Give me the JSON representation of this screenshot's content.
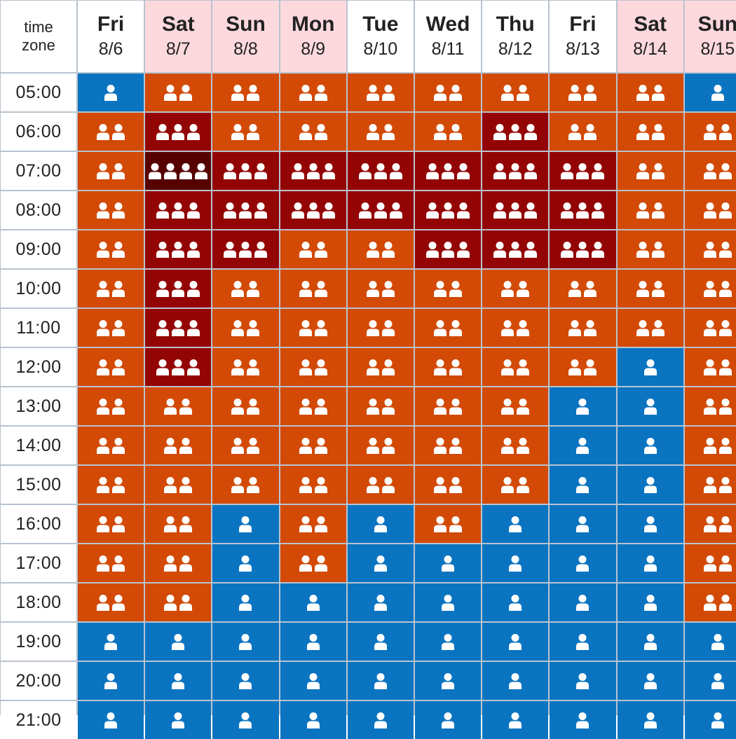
{
  "corner": {
    "line1": "time",
    "line2": "zone"
  },
  "colors": {
    "level1": "#0a74c1",
    "level2": "#d24a06",
    "level3": "#930404",
    "level4": "#560000",
    "weekend_header": "#fdd9de",
    "icon": "#ffffff"
  },
  "icon_name": "person-icon",
  "days": [
    {
      "name": "Fri",
      "date": "8/6",
      "weekend": false
    },
    {
      "name": "Sat",
      "date": "8/7",
      "weekend": true
    },
    {
      "name": "Sun",
      "date": "8/8",
      "weekend": true
    },
    {
      "name": "Mon",
      "date": "8/9",
      "weekend": true
    },
    {
      "name": "Tue",
      "date": "8/10",
      "weekend": false
    },
    {
      "name": "Wed",
      "date": "8/11",
      "weekend": false
    },
    {
      "name": "Thu",
      "date": "8/12",
      "weekend": false
    },
    {
      "name": "Fri",
      "date": "8/13",
      "weekend": false
    },
    {
      "name": "Sat",
      "date": "8/14",
      "weekend": true
    },
    {
      "name": "Sun",
      "date": "8/15",
      "weekend": true
    }
  ],
  "rows": [
    {
      "time": "05:00",
      "levels": [
        1,
        2,
        2,
        2,
        2,
        2,
        2,
        2,
        2,
        1
      ]
    },
    {
      "time": "06:00",
      "levels": [
        2,
        3,
        2,
        2,
        2,
        2,
        3,
        2,
        2,
        2
      ]
    },
    {
      "time": "07:00",
      "levels": [
        2,
        4,
        3,
        3,
        3,
        3,
        3,
        3,
        2,
        2
      ]
    },
    {
      "time": "08:00",
      "levels": [
        2,
        3,
        3,
        3,
        3,
        3,
        3,
        3,
        2,
        2
      ]
    },
    {
      "time": "09:00",
      "levels": [
        2,
        3,
        3,
        2,
        2,
        3,
        3,
        3,
        2,
        2
      ]
    },
    {
      "time": "10:00",
      "levels": [
        2,
        3,
        2,
        2,
        2,
        2,
        2,
        2,
        2,
        2
      ]
    },
    {
      "time": "11:00",
      "levels": [
        2,
        3,
        2,
        2,
        2,
        2,
        2,
        2,
        2,
        2
      ]
    },
    {
      "time": "12:00",
      "levels": [
        2,
        3,
        2,
        2,
        2,
        2,
        2,
        2,
        1,
        2
      ]
    },
    {
      "time": "13:00",
      "levels": [
        2,
        2,
        2,
        2,
        2,
        2,
        2,
        1,
        1,
        2
      ]
    },
    {
      "time": "14:00",
      "levels": [
        2,
        2,
        2,
        2,
        2,
        2,
        2,
        1,
        1,
        2
      ]
    },
    {
      "time": "15:00",
      "levels": [
        2,
        2,
        2,
        2,
        2,
        2,
        2,
        1,
        1,
        2
      ]
    },
    {
      "time": "16:00",
      "levels": [
        2,
        2,
        1,
        2,
        1,
        2,
        1,
        1,
        1,
        2
      ]
    },
    {
      "time": "17:00",
      "levels": [
        2,
        2,
        1,
        2,
        1,
        1,
        1,
        1,
        1,
        2
      ]
    },
    {
      "time": "18:00",
      "levels": [
        2,
        2,
        1,
        1,
        1,
        1,
        1,
        1,
        1,
        2
      ]
    },
    {
      "time": "19:00",
      "levels": [
        1,
        1,
        1,
        1,
        1,
        1,
        1,
        1,
        1,
        1
      ]
    },
    {
      "time": "20:00",
      "levels": [
        1,
        1,
        1,
        1,
        1,
        1,
        1,
        1,
        1,
        1
      ]
    },
    {
      "time": "21:00",
      "levels": [
        1,
        1,
        1,
        1,
        1,
        1,
        1,
        1,
        1,
        1
      ]
    }
  ]
}
